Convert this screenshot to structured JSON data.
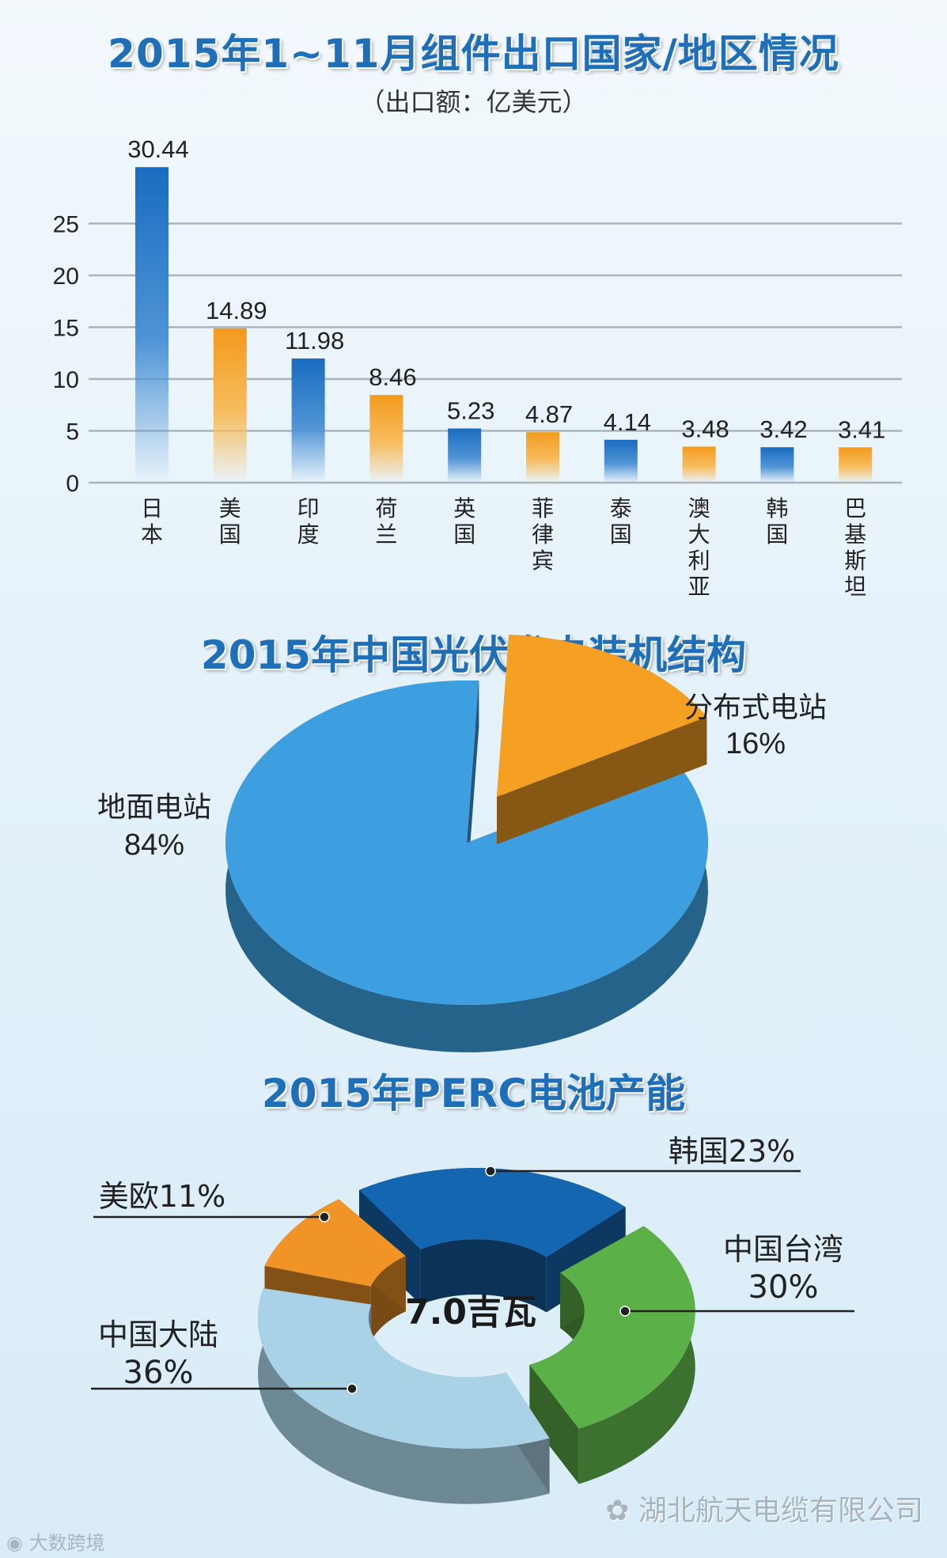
{
  "chart_data": [
    {
      "type": "bar",
      "title": "2015年1~11月组件出口国家/地区情况",
      "subtitle": "（出口额：亿美元）",
      "categories": [
        "日本",
        "美国",
        "印度",
        "荷兰",
        "英国",
        "菲律宾",
        "泰国",
        "澳大利亚",
        "韩国",
        "巴基斯坦"
      ],
      "values": [
        30.44,
        14.89,
        11.98,
        8.46,
        5.23,
        4.87,
        4.14,
        3.48,
        3.42,
        3.41
      ],
      "value_labels": [
        "30.44",
        "14.89",
        "11.98",
        "8.46",
        "5.23",
        "4.87",
        "4.14",
        "3.48",
        "3.42",
        "3.41"
      ],
      "y_ticks": [
        "0",
        "5",
        "10",
        "15",
        "20",
        "25"
      ],
      "ylim": [
        0,
        25
      ],
      "grid": true,
      "colors": [
        "#1e73c4",
        "#f3a32f",
        "#1e73c4",
        "#f3a32f",
        "#1e73c4",
        "#f3a32f",
        "#1e73c4",
        "#f3a32f",
        "#1e73c4",
        "#f3a32f"
      ]
    },
    {
      "type": "pie",
      "title": "2015年中国光伏发电装机结构",
      "slices": [
        {
          "label": "地面电站",
          "percent_label": "84%",
          "value": 84,
          "color": "#3d9fe0"
        },
        {
          "label": "分布式电站",
          "percent_label": "16%",
          "value": 16,
          "color": "#f5a023"
        }
      ]
    },
    {
      "type": "pie",
      "title": "2015年PERC电池产能",
      "center_label": "7.0吉瓦",
      "slices": [
        {
          "label": "韩国23%",
          "value": 23,
          "color": "#1566b0"
        },
        {
          "label": "中国台湾",
          "percent_label": "30%",
          "value": 30,
          "color": "#5cb048"
        },
        {
          "label": "中国大陆",
          "percent_label": "36%",
          "value": 36,
          "color": "#a9d2e6"
        },
        {
          "label": "美欧11%",
          "value": 11,
          "color": "#f09427"
        }
      ]
    }
  ],
  "watermark": {
    "text": "湖北航天电缆有限公司",
    "source": "大数跨境"
  }
}
